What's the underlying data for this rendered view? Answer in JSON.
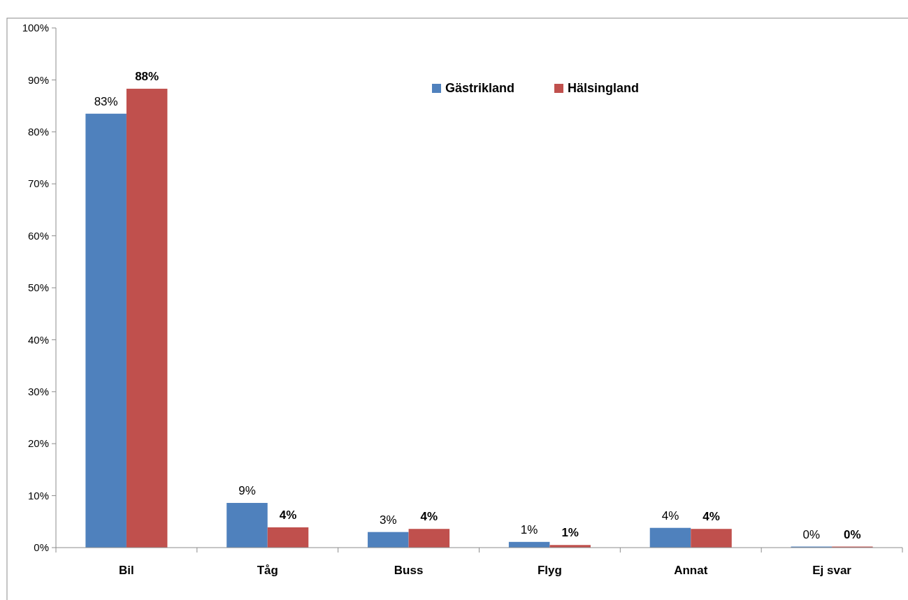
{
  "chart_data": {
    "type": "bar",
    "categories": [
      "Bil",
      "Tåg",
      "Buss",
      "Flyg",
      "Annat",
      "Ej svar"
    ],
    "series": [
      {
        "name": "Gästrikland",
        "color": "#4f81bd",
        "values": [
          83.5,
          8.6,
          3.0,
          1.1,
          3.8,
          0.2
        ],
        "value_labels": [
          "83%",
          "9%",
          "3%",
          "1%",
          "4%",
          "0%"
        ]
      },
      {
        "name": "Hälsingland",
        "color": "#c0504d",
        "values": [
          88.3,
          3.9,
          3.6,
          0.5,
          3.6,
          0.2
        ],
        "value_labels": [
          "88%",
          "4%",
          "4%",
          "1%",
          "4%",
          "0%"
        ]
      }
    ],
    "ylim": [
      0,
      100
    ],
    "yticks": [
      {
        "value": 0,
        "label": "0%"
      },
      {
        "value": 10,
        "label": "10%"
      },
      {
        "value": 20,
        "label": "20%"
      },
      {
        "value": 30,
        "label": "30%"
      },
      {
        "value": 40,
        "label": "40%"
      },
      {
        "value": 50,
        "label": "50%"
      },
      {
        "value": 60,
        "label": "60%"
      },
      {
        "value": 70,
        "label": "70%"
      },
      {
        "value": 80,
        "label": "80%"
      },
      {
        "value": 90,
        "label": "90%"
      },
      {
        "value": 100,
        "label": "100%"
      }
    ],
    "grid": false,
    "legend": "top"
  }
}
